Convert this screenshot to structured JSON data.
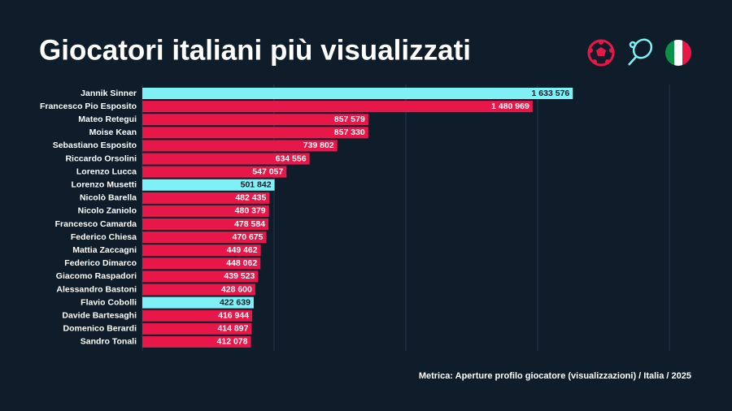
{
  "chart_data": {
    "type": "barh",
    "title": "Giocatori italiani più visualizzati",
    "footnote": "Metrica: Aperture profilo giocatore (visualizzazioni) / Italia / 2025",
    "categories": [
      "Jannik Sinner",
      "Francesco Pio Esposito",
      "Mateo Retegui",
      "Moise Kean",
      "Sebastiano Esposito",
      "Riccardo Orsolini",
      "Lorenzo Lucca",
      "Lorenzo Musetti",
      "Nicolò Barella",
      "Nicolo Zaniolo",
      "Francesco Camarda",
      "Federico Chiesa",
      "Mattia Zaccagni",
      "Federico Dimarco",
      "Giacomo Raspadori",
      "Alessandro Bastoni",
      "Flavio Cobolli",
      "Davide Bartesaghi",
      "Domenico Berardi",
      "Sandro Tonali"
    ],
    "values": [
      1633576,
      1480969,
      857579,
      857330,
      739802,
      634556,
      547057,
      501842,
      482435,
      480379,
      478584,
      470675,
      449462,
      448062,
      439523,
      428600,
      422639,
      416944,
      414897,
      412078
    ],
    "value_labels": [
      "1 633 576",
      "1 480 969",
      "857 579",
      "857 330",
      "739 802",
      "634 556",
      "547 057",
      "501 842",
      "482 435",
      "480 379",
      "478 584",
      "470 675",
      "449 462",
      "448 062",
      "439 523",
      "428 600",
      "422 639",
      "416 944",
      "414 897",
      "412 078"
    ],
    "colors": [
      "#7ff0f5",
      "#e8174a",
      "#e8174a",
      "#e8174a",
      "#e8174a",
      "#e8174a",
      "#e8174a",
      "#7ff0f5",
      "#e8174a",
      "#e8174a",
      "#e8174a",
      "#e8174a",
      "#e8174a",
      "#e8174a",
      "#e8174a",
      "#e8174a",
      "#7ff0f5",
      "#e8174a",
      "#e8174a",
      "#e8174a"
    ],
    "xlim": [
      0,
      2000000
    ],
    "xticks": [
      0,
      500000,
      1000000,
      1500000,
      2000000
    ],
    "grid": true
  }
}
